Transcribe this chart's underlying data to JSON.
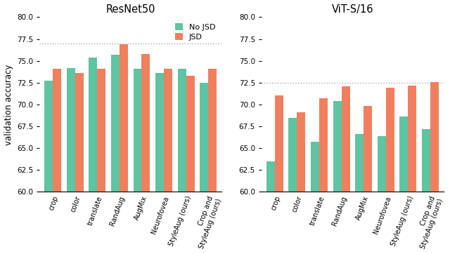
{
  "resnet50": {
    "title": "ResNet50",
    "categories": [
      "crop",
      "color",
      "translate",
      "RandAug",
      "AugMix",
      "Neurofovea",
      "StyleAug (ours)",
      "Crop and\nStyleAug (ours)"
    ],
    "no_jsd": [
      72.7,
      74.2,
      75.4,
      75.7,
      74.1,
      73.6,
      74.1,
      72.5
    ],
    "jsd": [
      74.1,
      73.6,
      74.1,
      76.9,
      75.8,
      74.1,
      73.3,
      74.1
    ],
    "hline": 77.0,
    "ylim": [
      60.0,
      80.0
    ],
    "yticks": [
      60.0,
      62.5,
      65.0,
      67.5,
      70.0,
      72.5,
      75.0,
      77.5,
      80.0
    ]
  },
  "vit_s16": {
    "title": "ViT-S/16",
    "categories": [
      "crop",
      "color",
      "translate",
      "RandAug",
      "AugMix",
      "Neurofovea",
      "StyleAug (ours)",
      "Crop and\nStyleAug (ours)"
    ],
    "no_jsd": [
      63.5,
      68.5,
      65.7,
      70.4,
      66.6,
      66.4,
      68.6,
      67.2
    ],
    "jsd": [
      71.0,
      69.1,
      70.7,
      72.1,
      69.8,
      71.9,
      72.2,
      72.6
    ],
    "hline": 72.5,
    "ylim": [
      60.0,
      80.0
    ],
    "yticks": [
      60.0,
      62.5,
      65.0,
      67.5,
      70.0,
      72.5,
      75.0,
      77.5,
      80.0
    ]
  },
  "color_no_jsd": "#5EC4A1",
  "color_jsd": "#F07F5E",
  "bar_width": 0.38,
  "legend_labels": [
    "No JSD",
    "JSD"
  ],
  "ylabel": "validation accuracy",
  "hline_color": "#aaaaaa",
  "hline_style": "dotted",
  "bar_bottom": 60.0
}
